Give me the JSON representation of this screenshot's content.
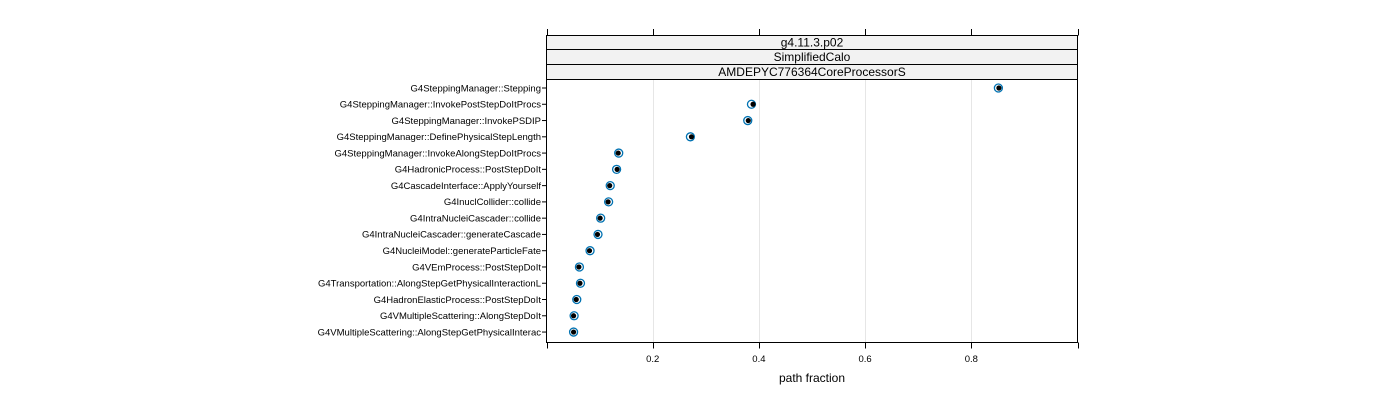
{
  "chart_data": {
    "type": "scatter",
    "strips": [
      "g4.11.3.p02",
      "SimplifiedCalo",
      "AMDEPYC776364CoreProcessorS"
    ],
    "xlabel": "path fraction",
    "xlim": [
      0.0,
      1.0
    ],
    "xticks": [
      0.2,
      0.4,
      0.6,
      0.8
    ],
    "xtick_labels": [
      "0.2",
      "0.4",
      "0.6",
      "0.8"
    ],
    "grid": true,
    "colors": {
      "open_marker": "#0072b2",
      "filled_marker": "#000000",
      "strip_fill": "#f2f2f2"
    },
    "categories": [
      "G4SteppingManager::Stepping",
      "G4SteppingManager::InvokePostStepDoItProcs",
      "G4SteppingManager::InvokePSDIP",
      "G4SteppingManager::DefinePhysicalStepLength",
      "G4SteppingManager::InvokeAlongStepDoItProcs",
      "G4HadronicProcess::PostStepDoIt",
      "G4CascadeInterface::ApplyYourself",
      "G4InuclCollider::collide",
      "G4IntraNucleiCascader::collide",
      "G4IntraNucleiCascader::generateCascade",
      "G4NucleiModel::generateParticleFate",
      "G4VEmProcess::PostStepDoIt",
      "G4Transportation::AlongStepGetPhysicalInteractionL",
      "G4HadronElasticProcess::PostStepDoIt",
      "G4VMultipleScattering::AlongStepDoIt",
      "G4VMultipleScattering::AlongStepGetPhysicalInterac"
    ],
    "series": [
      {
        "marker": "open_circle",
        "values": [
          0.851,
          0.386,
          0.379,
          0.271,
          0.136,
          0.132,
          0.12,
          0.117,
          0.102,
          0.097,
          0.082,
          0.062,
          0.064,
          0.057,
          0.052,
          0.051
        ]
      },
      {
        "marker": "filled_dot",
        "values": [
          0.852,
          0.389,
          0.38,
          0.273,
          0.135,
          0.133,
          0.119,
          0.116,
          0.101,
          0.096,
          0.081,
          0.061,
          0.063,
          0.056,
          0.051,
          0.051
        ]
      }
    ]
  }
}
